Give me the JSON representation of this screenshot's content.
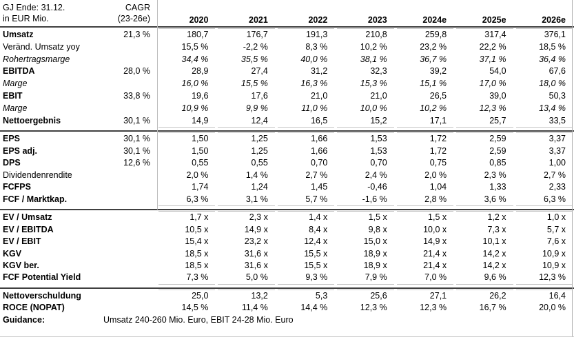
{
  "table": {
    "header": {
      "title_line1": "GJ Ende: 31.12.",
      "title_line2": "in EUR Mio.",
      "cagr_line1": "CAGR",
      "cagr_line2": "(23-26e)",
      "years": [
        "2020",
        "2021",
        "2022",
        "2023",
        "2024e",
        "2025e",
        "2026e"
      ]
    },
    "sections": [
      {
        "rows": [
          {
            "label": "Umsatz",
            "style": "bold",
            "cagr": "21,3 %",
            "values": [
              "180,7",
              "176,7",
              "191,3",
              "210,8",
              "259,8",
              "317,4",
              "376,1"
            ]
          },
          {
            "label": "Veränd. Umsatz yoy",
            "style": "plain",
            "cagr": "",
            "values": [
              "15,5 %",
              "-2,2 %",
              "8,3 %",
              "10,2 %",
              "23,2 %",
              "22,2 %",
              "18,5 %"
            ]
          },
          {
            "label": "Rohertragsmarge",
            "style": "italic",
            "cagr": "",
            "values": [
              "34,4 %",
              "35,5 %",
              "40,0 %",
              "38,1 %",
              "36,7 %",
              "37,1 %",
              "36,4 %"
            ]
          },
          {
            "label": "EBITDA",
            "style": "bold",
            "cagr": "28,0 %",
            "values": [
              "28,9",
              "27,4",
              "31,2",
              "32,3",
              "39,2",
              "54,0",
              "67,6"
            ]
          },
          {
            "label": "Marge",
            "style": "italic",
            "cagr": "",
            "values": [
              "16,0 %",
              "15,5 %",
              "16,3 %",
              "15,3 %",
              "15,1 %",
              "17,0 %",
              "18,0 %"
            ]
          },
          {
            "label": "EBIT",
            "style": "bold",
            "cagr": "33,8 %",
            "values": [
              "19,6",
              "17,6",
              "21,0",
              "21,0",
              "26,5",
              "39,0",
              "50,3"
            ]
          },
          {
            "label": "Marge",
            "style": "italic",
            "cagr": "",
            "values": [
              "10,9 %",
              "9,9 %",
              "11,0 %",
              "10,0 %",
              "10,2 %",
              "12,3 %",
              "13,4 %"
            ]
          },
          {
            "label": "Nettoergebnis",
            "style": "bold",
            "cagr": "30,1 %",
            "values": [
              "14,9",
              "12,4",
              "16,5",
              "15,2",
              "17,1",
              "25,7",
              "33,5"
            ]
          }
        ]
      },
      {
        "rows": [
          {
            "label": "EPS",
            "style": "bold",
            "cagr": "30,1 %",
            "values": [
              "1,50",
              "1,25",
              "1,66",
              "1,53",
              "1,72",
              "2,59",
              "3,37"
            ]
          },
          {
            "label": "EPS adj.",
            "style": "bold",
            "cagr": "30,1 %",
            "values": [
              "1,50",
              "1,25",
              "1,66",
              "1,53",
              "1,72",
              "2,59",
              "3,37"
            ]
          },
          {
            "label": "DPS",
            "style": "bold",
            "cagr": "12,6 %",
            "values": [
              "0,55",
              "0,55",
              "0,70",
              "0,70",
              "0,75",
              "0,85",
              "1,00"
            ]
          },
          {
            "label": "Dividendenrendite",
            "style": "plain",
            "cagr": "",
            "values": [
              "2,0 %",
              "1,4 %",
              "2,7 %",
              "2,4 %",
              "2,0 %",
              "2,3 %",
              "2,7 %"
            ]
          },
          {
            "label": "FCFPS",
            "style": "bold",
            "cagr": "",
            "values": [
              "1,74",
              "1,24",
              "1,45",
              "-0,46",
              "1,04",
              "1,33",
              "2,33"
            ]
          },
          {
            "label": "FCF / Marktkap.",
            "style": "bold",
            "cagr": "",
            "values": [
              "6,3 %",
              "3,1 %",
              "5,7 %",
              "-1,6 %",
              "2,8 %",
              "3,6 %",
              "6,3 %"
            ]
          }
        ]
      },
      {
        "rows": [
          {
            "label": "EV / Umsatz",
            "style": "bold",
            "cagr": "",
            "values": [
              "1,7 x",
              "2,3 x",
              "1,4 x",
              "1,5 x",
              "1,5 x",
              "1,2 x",
              "1,0 x"
            ]
          },
          {
            "label": "EV / EBITDA",
            "style": "bold",
            "cagr": "",
            "values": [
              "10,5 x",
              "14,9 x",
              "8,4 x",
              "9,8 x",
              "10,0 x",
              "7,3 x",
              "5,7 x"
            ]
          },
          {
            "label": "EV / EBIT",
            "style": "bold",
            "cagr": "",
            "values": [
              "15,4 x",
              "23,2 x",
              "12,4 x",
              "15,0 x",
              "14,9 x",
              "10,1 x",
              "7,6 x"
            ]
          },
          {
            "label": "KGV",
            "style": "bold",
            "cagr": "",
            "values": [
              "18,5 x",
              "31,6 x",
              "15,5 x",
              "18,9 x",
              "21,4 x",
              "14,2 x",
              "10,9 x"
            ]
          },
          {
            "label": "KGV ber.",
            "style": "bold",
            "cagr": "",
            "values": [
              "18,5 x",
              "31,6 x",
              "15,5 x",
              "18,9 x",
              "21,4 x",
              "14,2 x",
              "10,9 x"
            ]
          },
          {
            "label": "FCF Potential Yield",
            "style": "bold",
            "cagr": "",
            "values": [
              "7,3 %",
              "5,0 %",
              "9,3 %",
              "7,9 %",
              "7,0 %",
              "9,6 %",
              "12,3 %"
            ]
          }
        ]
      },
      {
        "rows": [
          {
            "label": "Nettoverschuldung",
            "style": "bold",
            "cagr": "",
            "values": [
              "25,0",
              "13,2",
              "5,3",
              "25,6",
              "27,1",
              "26,2",
              "16,4"
            ]
          },
          {
            "label": "ROCE (NOPAT)",
            "style": "bold",
            "cagr": "",
            "values": [
              "14,5 %",
              "11,4 %",
              "14,4 %",
              "12,3 %",
              "12,3 %",
              "16,7 %",
              "20,0 %"
            ]
          },
          {
            "label": "Guidance:",
            "style": "bold",
            "cagr": "",
            "values": [],
            "span_text": "Umsatz 240-260 Mio. Euro, EBIT 24-28 Mio. Euro"
          }
        ]
      }
    ]
  },
  "colors": {
    "background": "#ffffff",
    "text": "#000000",
    "section_border": "#404040",
    "gridline": "#c4c4c4",
    "column_separator": "#bdbdbd",
    "right_edge_line": "#b0b0b0"
  }
}
